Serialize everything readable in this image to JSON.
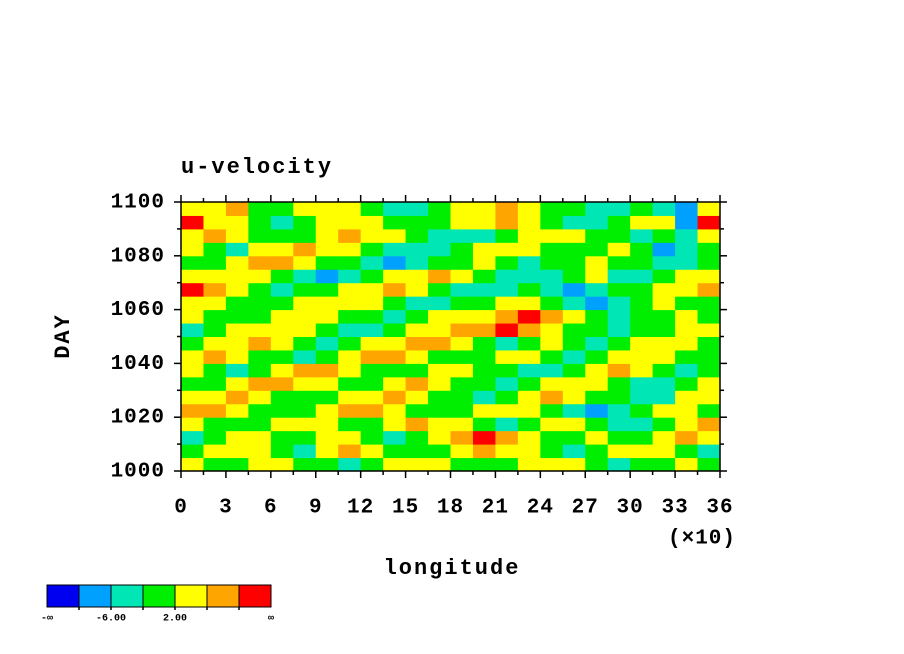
{
  "chart_data": {
    "type": "heatmap",
    "title": "u-velocity",
    "xlabel": "longitude",
    "ylabel": "DAY",
    "x_multiplier_label": "(×10)",
    "xlim": [
      0,
      360
    ],
    "ylim": [
      1000,
      1100
    ],
    "xticks": [
      {
        "value": 0,
        "label": "0"
      },
      {
        "value": 30,
        "label": "3"
      },
      {
        "value": 60,
        "label": "6"
      },
      {
        "value": 90,
        "label": "9"
      },
      {
        "value": 120,
        "label": "12"
      },
      {
        "value": 150,
        "label": "15"
      },
      {
        "value": 180,
        "label": "18"
      },
      {
        "value": 210,
        "label": "21"
      },
      {
        "value": 240,
        "label": "24"
      },
      {
        "value": 270,
        "label": "27"
      },
      {
        "value": 300,
        "label": "30"
      },
      {
        "value": 330,
        "label": "33"
      },
      {
        "value": 360,
        "label": "36"
      }
    ],
    "yticks": [
      1000,
      1020,
      1040,
      1060,
      1080,
      1100
    ],
    "colorbar": {
      "colors": [
        "#0000f0",
        "#00a0ff",
        "#00e6b4",
        "#00ee00",
        "#ffff00",
        "#ffa500",
        "#ff0000"
      ],
      "boundaries": [
        -10,
        -6,
        -2,
        2,
        6,
        10
      ],
      "labels": [
        {
          "value": -6,
          "label": "-6.00"
        },
        {
          "value": 2,
          "label": "2.00"
        }
      ],
      "min_label": "-∞",
      "max_label": "∞"
    },
    "x": [
      7.5,
      22.5,
      37.5,
      52.5,
      67.5,
      82.5,
      97.5,
      112.5,
      127.5,
      142.5,
      157.5,
      172.5,
      187.5,
      202.5,
      217.5,
      232.5,
      247.5,
      262.5,
      277.5,
      292.5,
      307.5,
      322.5,
      337.5,
      352.5
    ],
    "y": [
      1002.5,
      1007.5,
      1012.5,
      1017.5,
      1022.5,
      1027.5,
      1032.5,
      1037.5,
      1042.5,
      1047.5,
      1052.5,
      1057.5,
      1062.5,
      1067.5,
      1072.5,
      1077.5,
      1082.5,
      1087.5,
      1092.5,
      1097.5
    ],
    "z": [
      [
        2,
        0,
        -1,
        3,
        4,
        1,
        0,
        -3,
        -1,
        2,
        5,
        3,
        0,
        -1,
        1,
        3,
        4,
        2,
        -2,
        -3,
        0,
        1,
        2,
        -1
      ],
      [
        0,
        3,
        5,
        2,
        -1,
        -3,
        4,
        6,
        3,
        0,
        -2,
        1,
        4,
        7,
        5,
        2,
        0,
        -4,
        -1,
        3,
        5,
        2,
        0,
        -3
      ],
      [
        -3,
        -1,
        2,
        4,
        1,
        0,
        2,
        3,
        -2,
        -4,
        0,
        3,
        8,
        11,
        6,
        2,
        -1,
        0,
        3,
        1,
        -2,
        4,
        7,
        2
      ],
      [
        4,
        1,
        -2,
        0,
        3,
        5,
        2,
        -1,
        0,
        3,
        6,
        4,
        2,
        0,
        -3,
        1,
        4,
        2,
        -1,
        -5,
        -3,
        0,
        3,
        6
      ],
      [
        7,
        8,
        3,
        0,
        -2,
        1,
        4,
        6,
        7,
        3,
        0,
        -2,
        -1,
        2,
        5,
        3,
        0,
        -4,
        -7,
        -3,
        1,
        4,
        2,
        0
      ],
      [
        2,
        5,
        7,
        4,
        1,
        -1,
        0,
        3,
        5,
        8,
        4,
        1,
        -2,
        -3,
        0,
        4,
        6,
        3,
        -1,
        -2,
        -6,
        -3,
        2,
        5
      ],
      [
        -2,
        0,
        3,
        6,
        8,
        5,
        2,
        -1,
        0,
        4,
        6,
        3,
        0,
        -2,
        -4,
        -1,
        3,
        5,
        2,
        0,
        -3,
        -5,
        -1,
        3
      ],
      [
        3,
        -1,
        -3,
        0,
        4,
        6,
        7,
        3,
        1,
        -2,
        0,
        3,
        5,
        1,
        -2,
        -6,
        -3,
        1,
        4,
        7,
        3,
        -1,
        -4,
        0
      ],
      [
        5,
        7,
        4,
        1,
        -1,
        -3,
        0,
        4,
        6,
        7,
        3,
        0,
        -2,
        -1,
        3,
        4,
        -2,
        -5,
        -1,
        3,
        5,
        2,
        0,
        -2
      ],
      [
        0,
        3,
        5,
        6,
        2,
        -2,
        -4,
        -1,
        3,
        5,
        7,
        6,
        2,
        -1,
        -3,
        0,
        2,
        -2,
        -4,
        -1,
        2,
        4,
        3,
        1
      ],
      [
        -3,
        -1,
        2,
        4,
        5,
        3,
        0,
        -3,
        -5,
        -1,
        2,
        4,
        6,
        8,
        11,
        9,
        3,
        0,
        -2,
        -3,
        0,
        1,
        3,
        4
      ],
      [
        2,
        0,
        -2,
        0,
        3,
        5,
        4,
        1,
        -2,
        -4,
        -1,
        2,
        3,
        5,
        7,
        10,
        6,
        2,
        -1,
        -3,
        -2,
        0,
        2,
        1
      ],
      [
        4,
        3,
        1,
        -2,
        -1,
        2,
        4,
        5,
        3,
        0,
        -3,
        -5,
        -2,
        0,
        3,
        4,
        1,
        -4,
        -8,
        -4,
        -1,
        2,
        0,
        -2
      ],
      [
        11,
        6,
        3,
        0,
        -3,
        -2,
        1,
        3,
        5,
        7,
        4,
        0,
        -3,
        -6,
        -4,
        -2,
        -5,
        -9,
        -6,
        -2,
        1,
        3,
        4,
        9
      ],
      [
        3,
        5,
        4,
        2,
        -1,
        -4,
        -7,
        -3,
        0,
        3,
        5,
        6,
        2,
        -1,
        -4,
        -6,
        -3,
        0,
        2,
        -3,
        -5,
        -1,
        2,
        5
      ],
      [
        -2,
        1,
        4,
        6,
        8,
        4,
        1,
        -2,
        -4,
        -9,
        -6,
        -2,
        0,
        3,
        -1,
        -4,
        -2,
        1,
        3,
        1,
        -2,
        -4,
        -6,
        -1
      ],
      [
        2,
        -1,
        -3,
        2,
        5,
        7,
        4,
        2,
        0,
        -3,
        -5,
        -4,
        -1,
        2,
        5,
        3,
        0,
        -2,
        1,
        4,
        -1,
        -9,
        -4,
        -2
      ],
      [
        4,
        6,
        3,
        0,
        -2,
        0,
        3,
        6,
        5,
        2,
        -1,
        -4,
        -6,
        -3,
        0,
        2,
        4,
        5,
        1,
        -2,
        -4,
        -2,
        -5,
        2
      ],
      [
        10,
        5,
        2,
        -1,
        -3,
        -1,
        2,
        4,
        3,
        0,
        -2,
        -1,
        2,
        4,
        6,
        3,
        0,
        -3,
        -5,
        -2,
        3,
        5,
        -7,
        11
      ],
      [
        4,
        2,
        6,
        0,
        -1,
        3,
        5,
        2,
        0,
        -3,
        -4,
        -1,
        2,
        3,
        8,
        4,
        1,
        -2,
        -3,
        -5,
        -2,
        -4,
        -8,
        3
      ]
    ]
  }
}
